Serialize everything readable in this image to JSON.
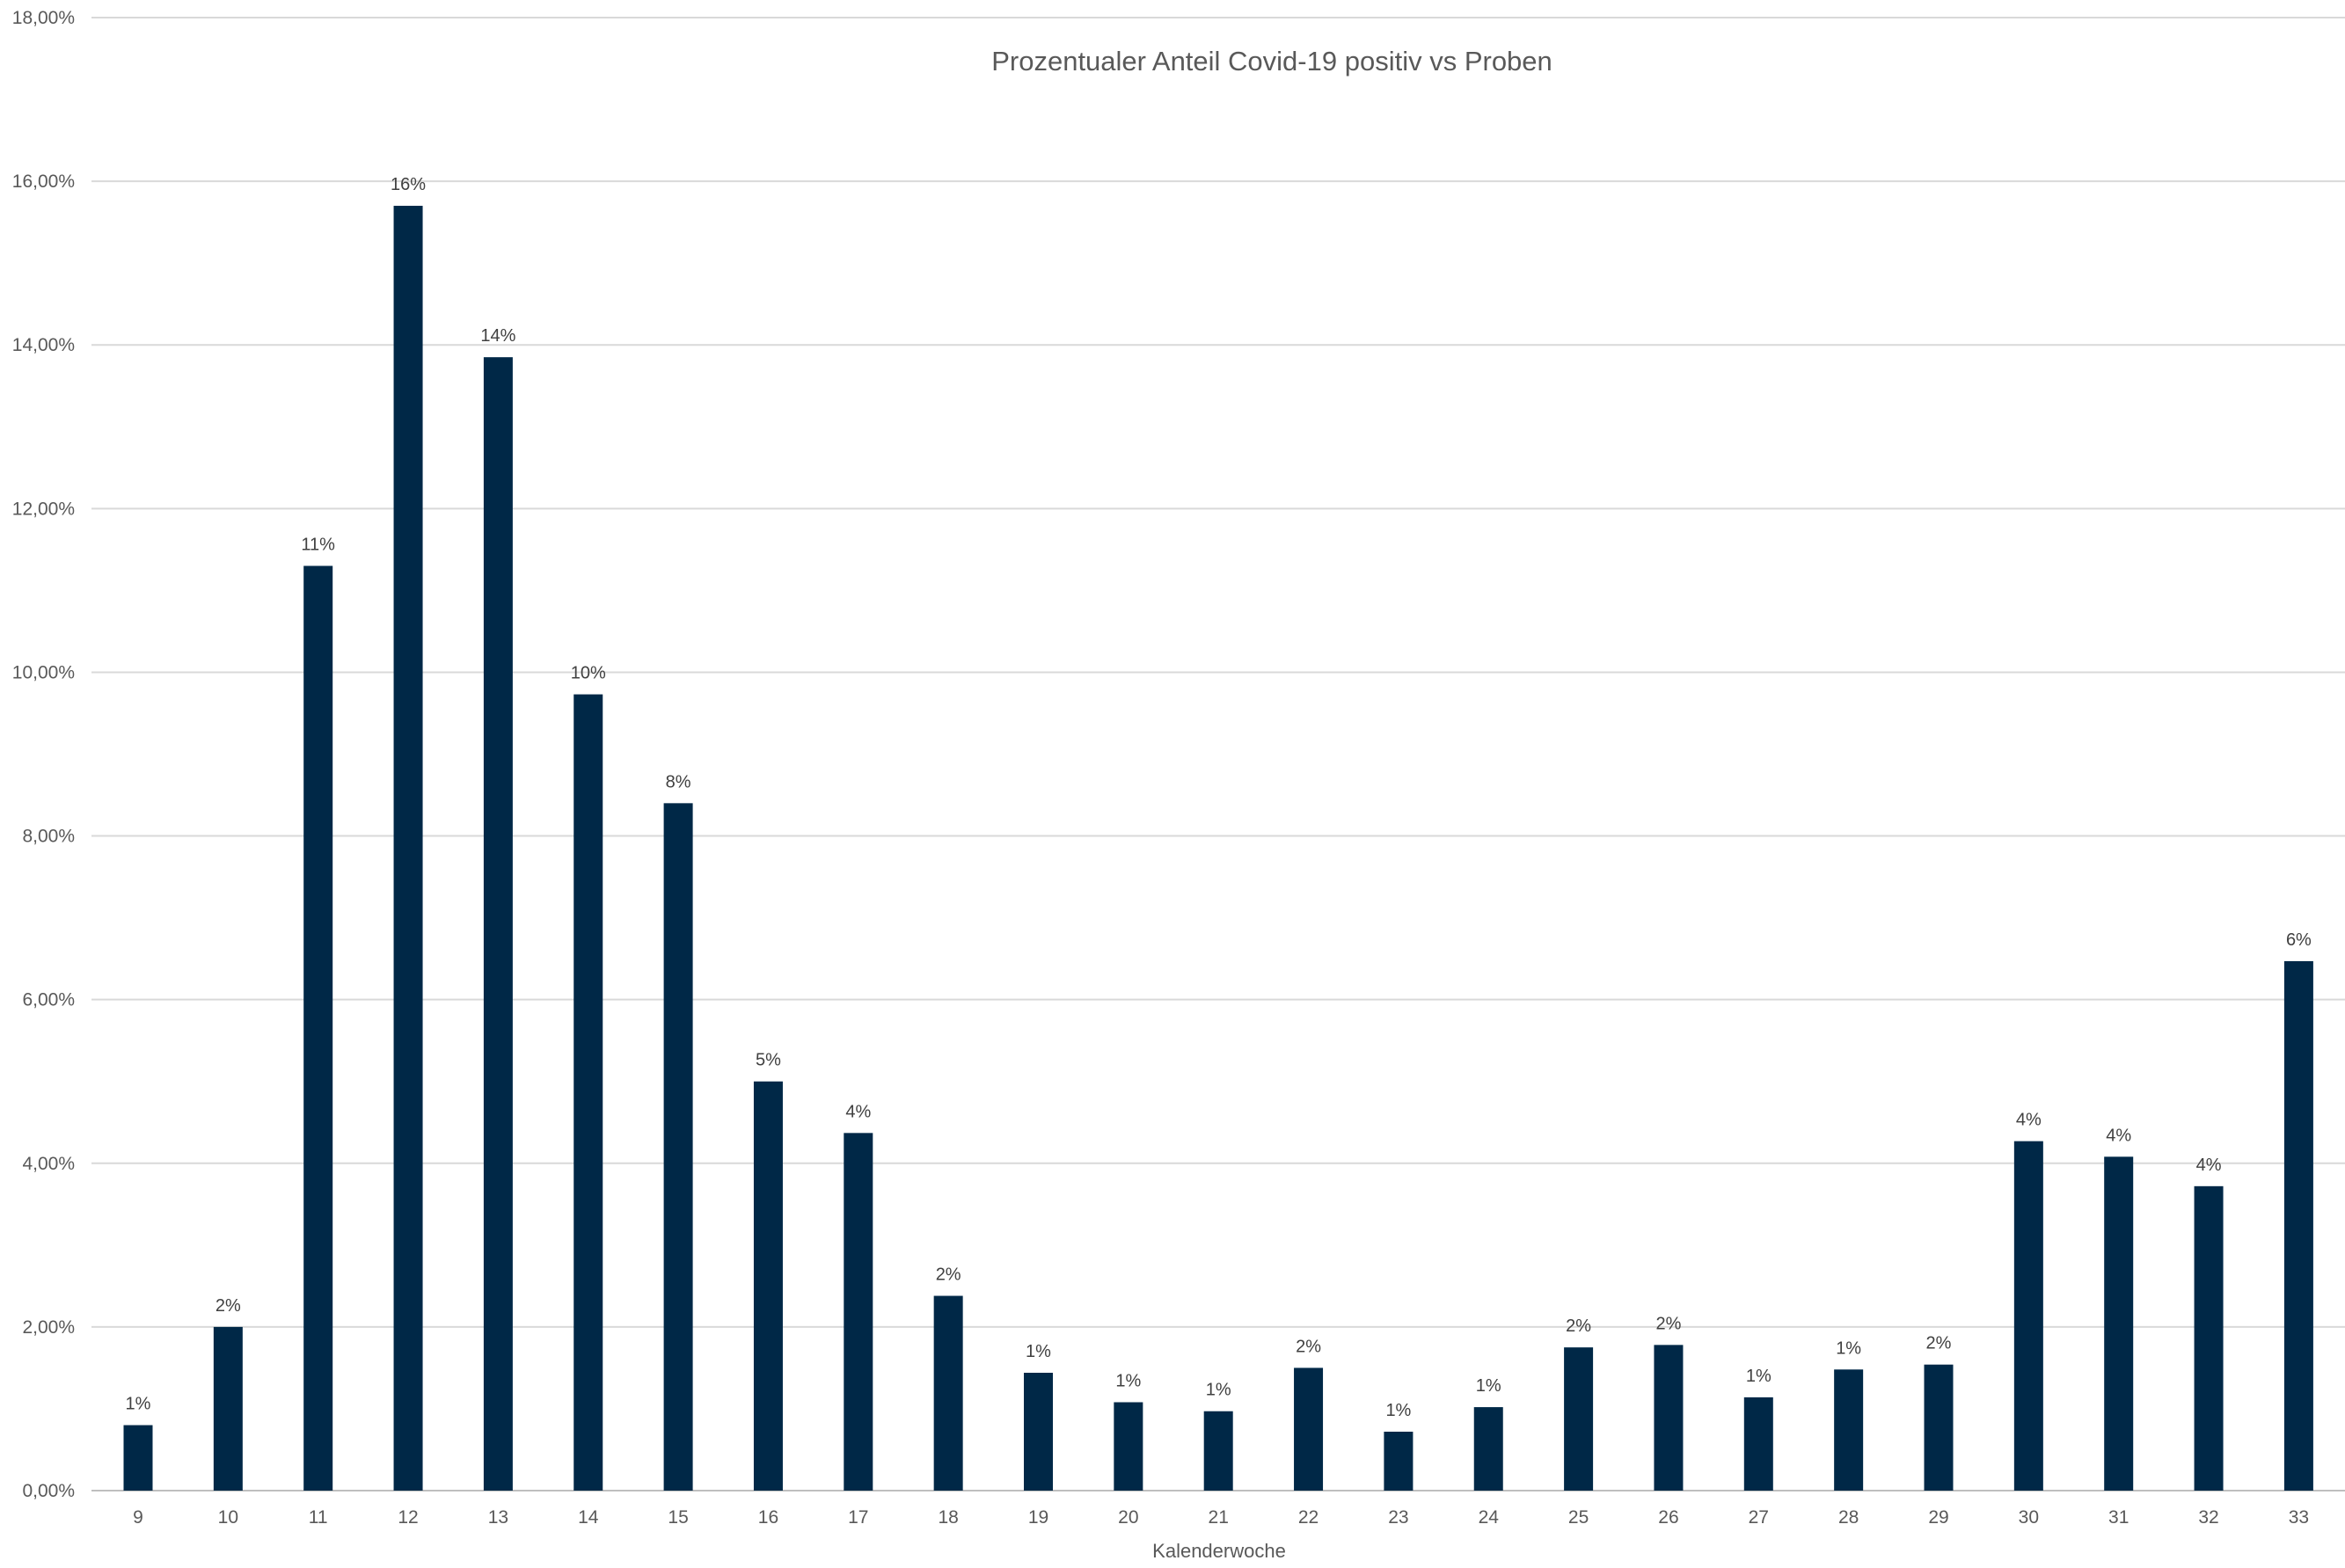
{
  "chart_data": {
    "type": "bar",
    "title": "Prozentualer Anteil Covid-19 positiv vs Proben",
    "xlabel": "Kalenderwoche",
    "ylabel": "",
    "ylim": [
      0,
      18
    ],
    "yticks": [
      "0,00%",
      "2,00%",
      "4,00%",
      "6,00%",
      "8,00%",
      "10,00%",
      "12,00%",
      "14,00%",
      "16,00%",
      "18,00%"
    ],
    "grid": true,
    "bar_color": "#002847",
    "categories": [
      "9",
      "10",
      "11",
      "12",
      "13",
      "14",
      "15",
      "16",
      "17",
      "18",
      "19",
      "20",
      "21",
      "22",
      "23",
      "24",
      "25",
      "26",
      "27",
      "28",
      "29",
      "30",
      "31",
      "32",
      "33"
    ],
    "values": [
      0.8,
      2.0,
      11.3,
      15.7,
      13.85,
      9.73,
      8.4,
      5.0,
      4.37,
      2.38,
      1.44,
      1.08,
      0.97,
      1.5,
      0.72,
      1.02,
      1.75,
      1.78,
      1.14,
      1.48,
      1.54,
      4.27,
      4.08,
      3.72,
      6.47
    ],
    "data_labels": [
      "1%",
      "2%",
      "11%",
      "16%",
      "14%",
      "10%",
      "8%",
      "5%",
      "4%",
      "2%",
      "1%",
      "1%",
      "1%",
      "2%",
      "1%",
      "1%",
      "2%",
      "2%",
      "1%",
      "1%",
      "2%",
      "4%",
      "4%",
      "4%",
      "6%"
    ]
  }
}
